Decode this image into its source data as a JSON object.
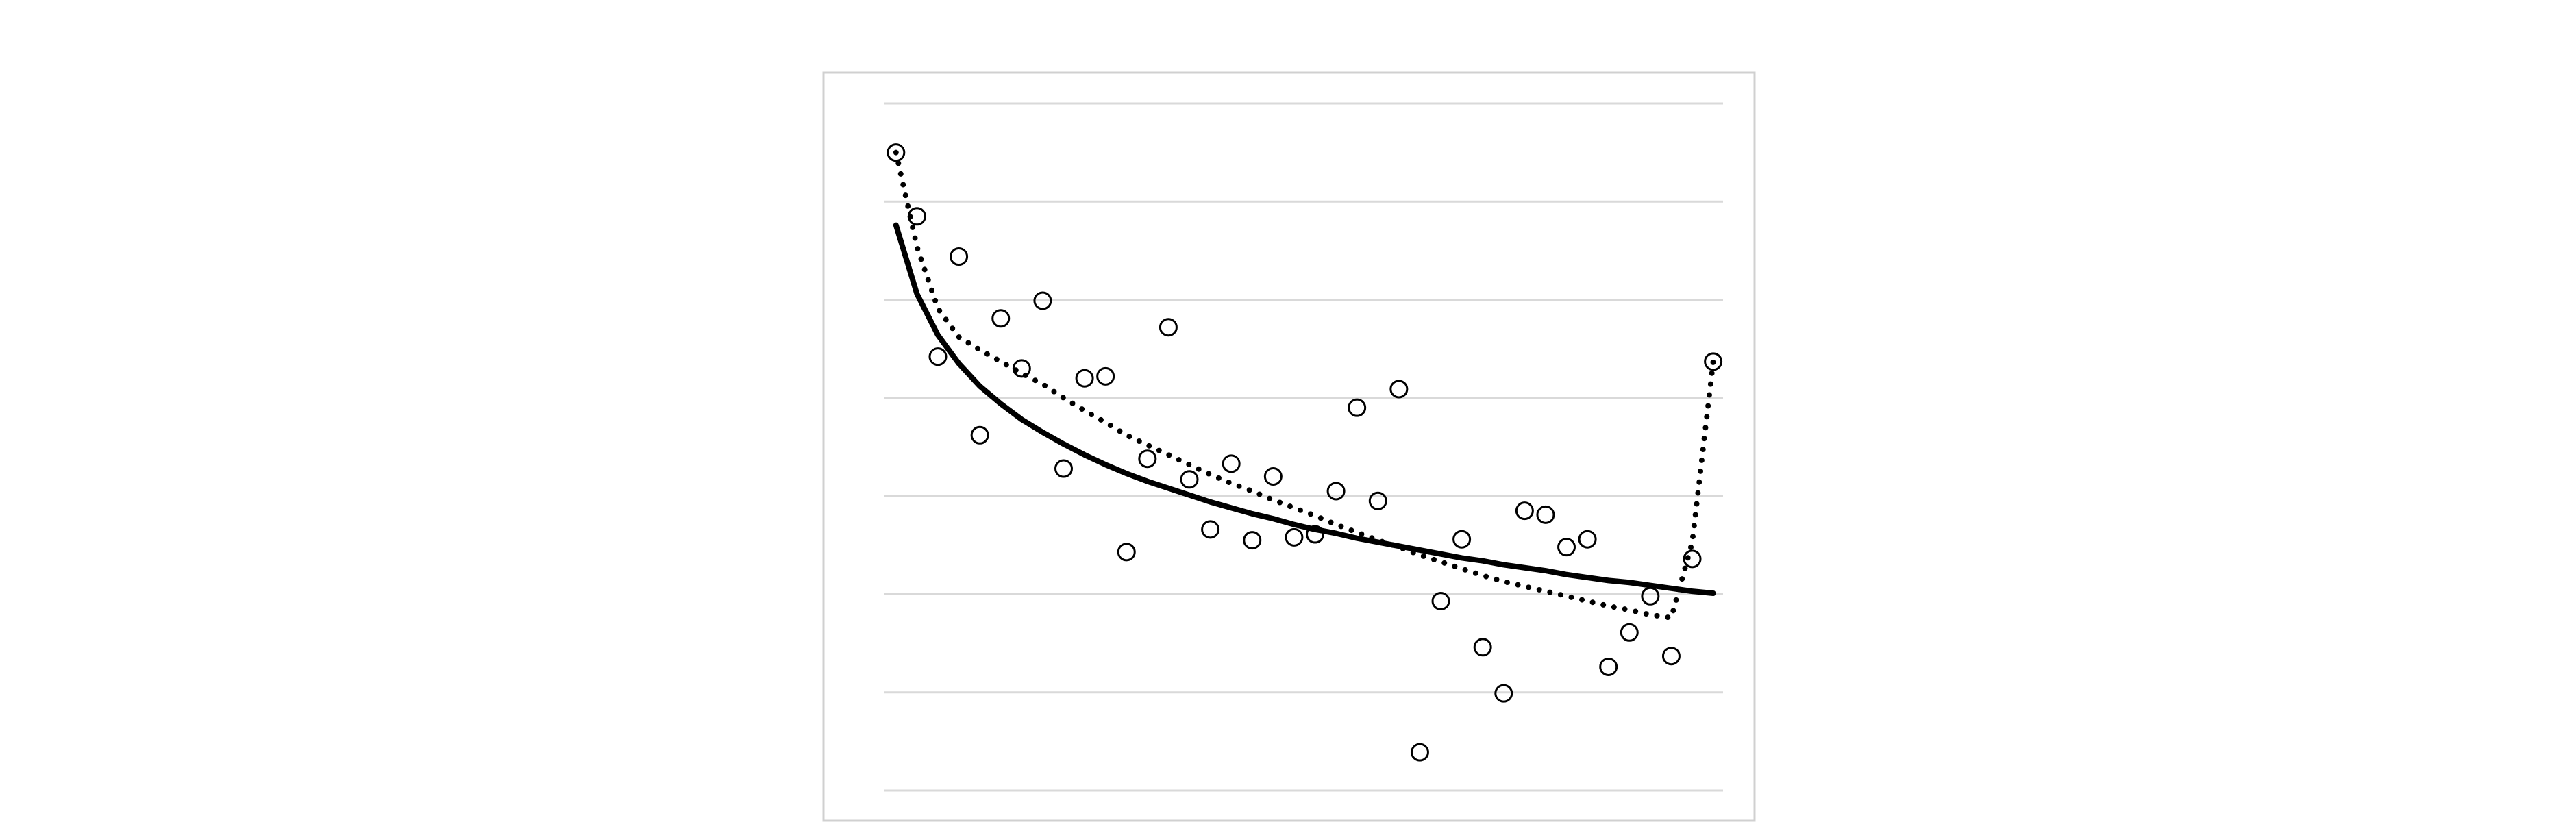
{
  "chart_data": {
    "type": "scatter",
    "x": [
      1,
      2,
      3,
      4,
      5,
      6,
      7,
      8,
      9,
      10,
      11,
      12,
      13,
      14,
      15,
      16,
      17,
      18,
      19,
      20,
      21,
      22,
      23,
      24,
      25,
      26,
      27,
      28,
      29,
      30,
      31,
      32,
      33,
      34,
      35,
      36,
      37,
      38,
      39,
      40
    ],
    "series": [
      {
        "color": "#000000",
        "marker": "circle",
        "values": [
          6.5,
          5.85,
          4.42,
          5.44,
          3.62,
          4.81,
          4.3,
          4.99,
          3.28,
          4.2,
          4.22,
          2.43,
          3.38,
          4.72,
          3.17,
          2.66,
          3.33,
          2.55,
          3.2,
          2.58,
          2.61,
          3.05,
          3.9,
          2.95,
          4.09,
          0.39,
          1.93,
          2.56,
          1.46,
          0.99,
          2.85,
          2.81,
          2.48,
          2.56,
          1.26,
          1.61,
          1.98,
          1.37,
          2.36,
          4.37
        ]
      },
      {
        "color": "#000000",
        "line": "solid",
        "values": [
          5.76,
          5.06,
          4.64,
          4.35,
          4.12,
          3.94,
          3.78,
          3.65,
          3.53,
          3.42,
          3.32,
          3.23,
          3.15,
          3.08,
          3.01,
          2.94,
          2.88,
          2.82,
          2.77,
          2.71,
          2.66,
          2.62,
          2.57,
          2.53,
          2.49,
          2.45,
          2.41,
          2.37,
          2.34,
          2.3,
          2.27,
          2.24,
          2.2,
          2.17,
          2.14,
          2.12,
          2.09,
          2.06,
          2.03,
          2.01
        ]
      },
      {
        "color": "#000000",
        "line": "dotted",
        "values": [
          6.5,
          5.54,
          4.91,
          4.62,
          4.49,
          4.37,
          4.25,
          4.14,
          4.0,
          3.87,
          3.75,
          3.62,
          3.52,
          3.42,
          3.32,
          3.22,
          3.13,
          3.05,
          2.96,
          2.88,
          2.8,
          2.71,
          2.63,
          2.55,
          2.48,
          2.4,
          2.33,
          2.26,
          2.19,
          2.13,
          2.08,
          2.03,
          1.98,
          1.93,
          1.88,
          1.84,
          1.79,
          1.76,
          2.53,
          4.37
        ]
      }
    ],
    "xlim": [
      0.45,
      40.47
    ],
    "ylim": [
      0,
      7
    ],
    "yticks": [
      0,
      1,
      2,
      3,
      4,
      5,
      6,
      7
    ],
    "grid": true
  }
}
